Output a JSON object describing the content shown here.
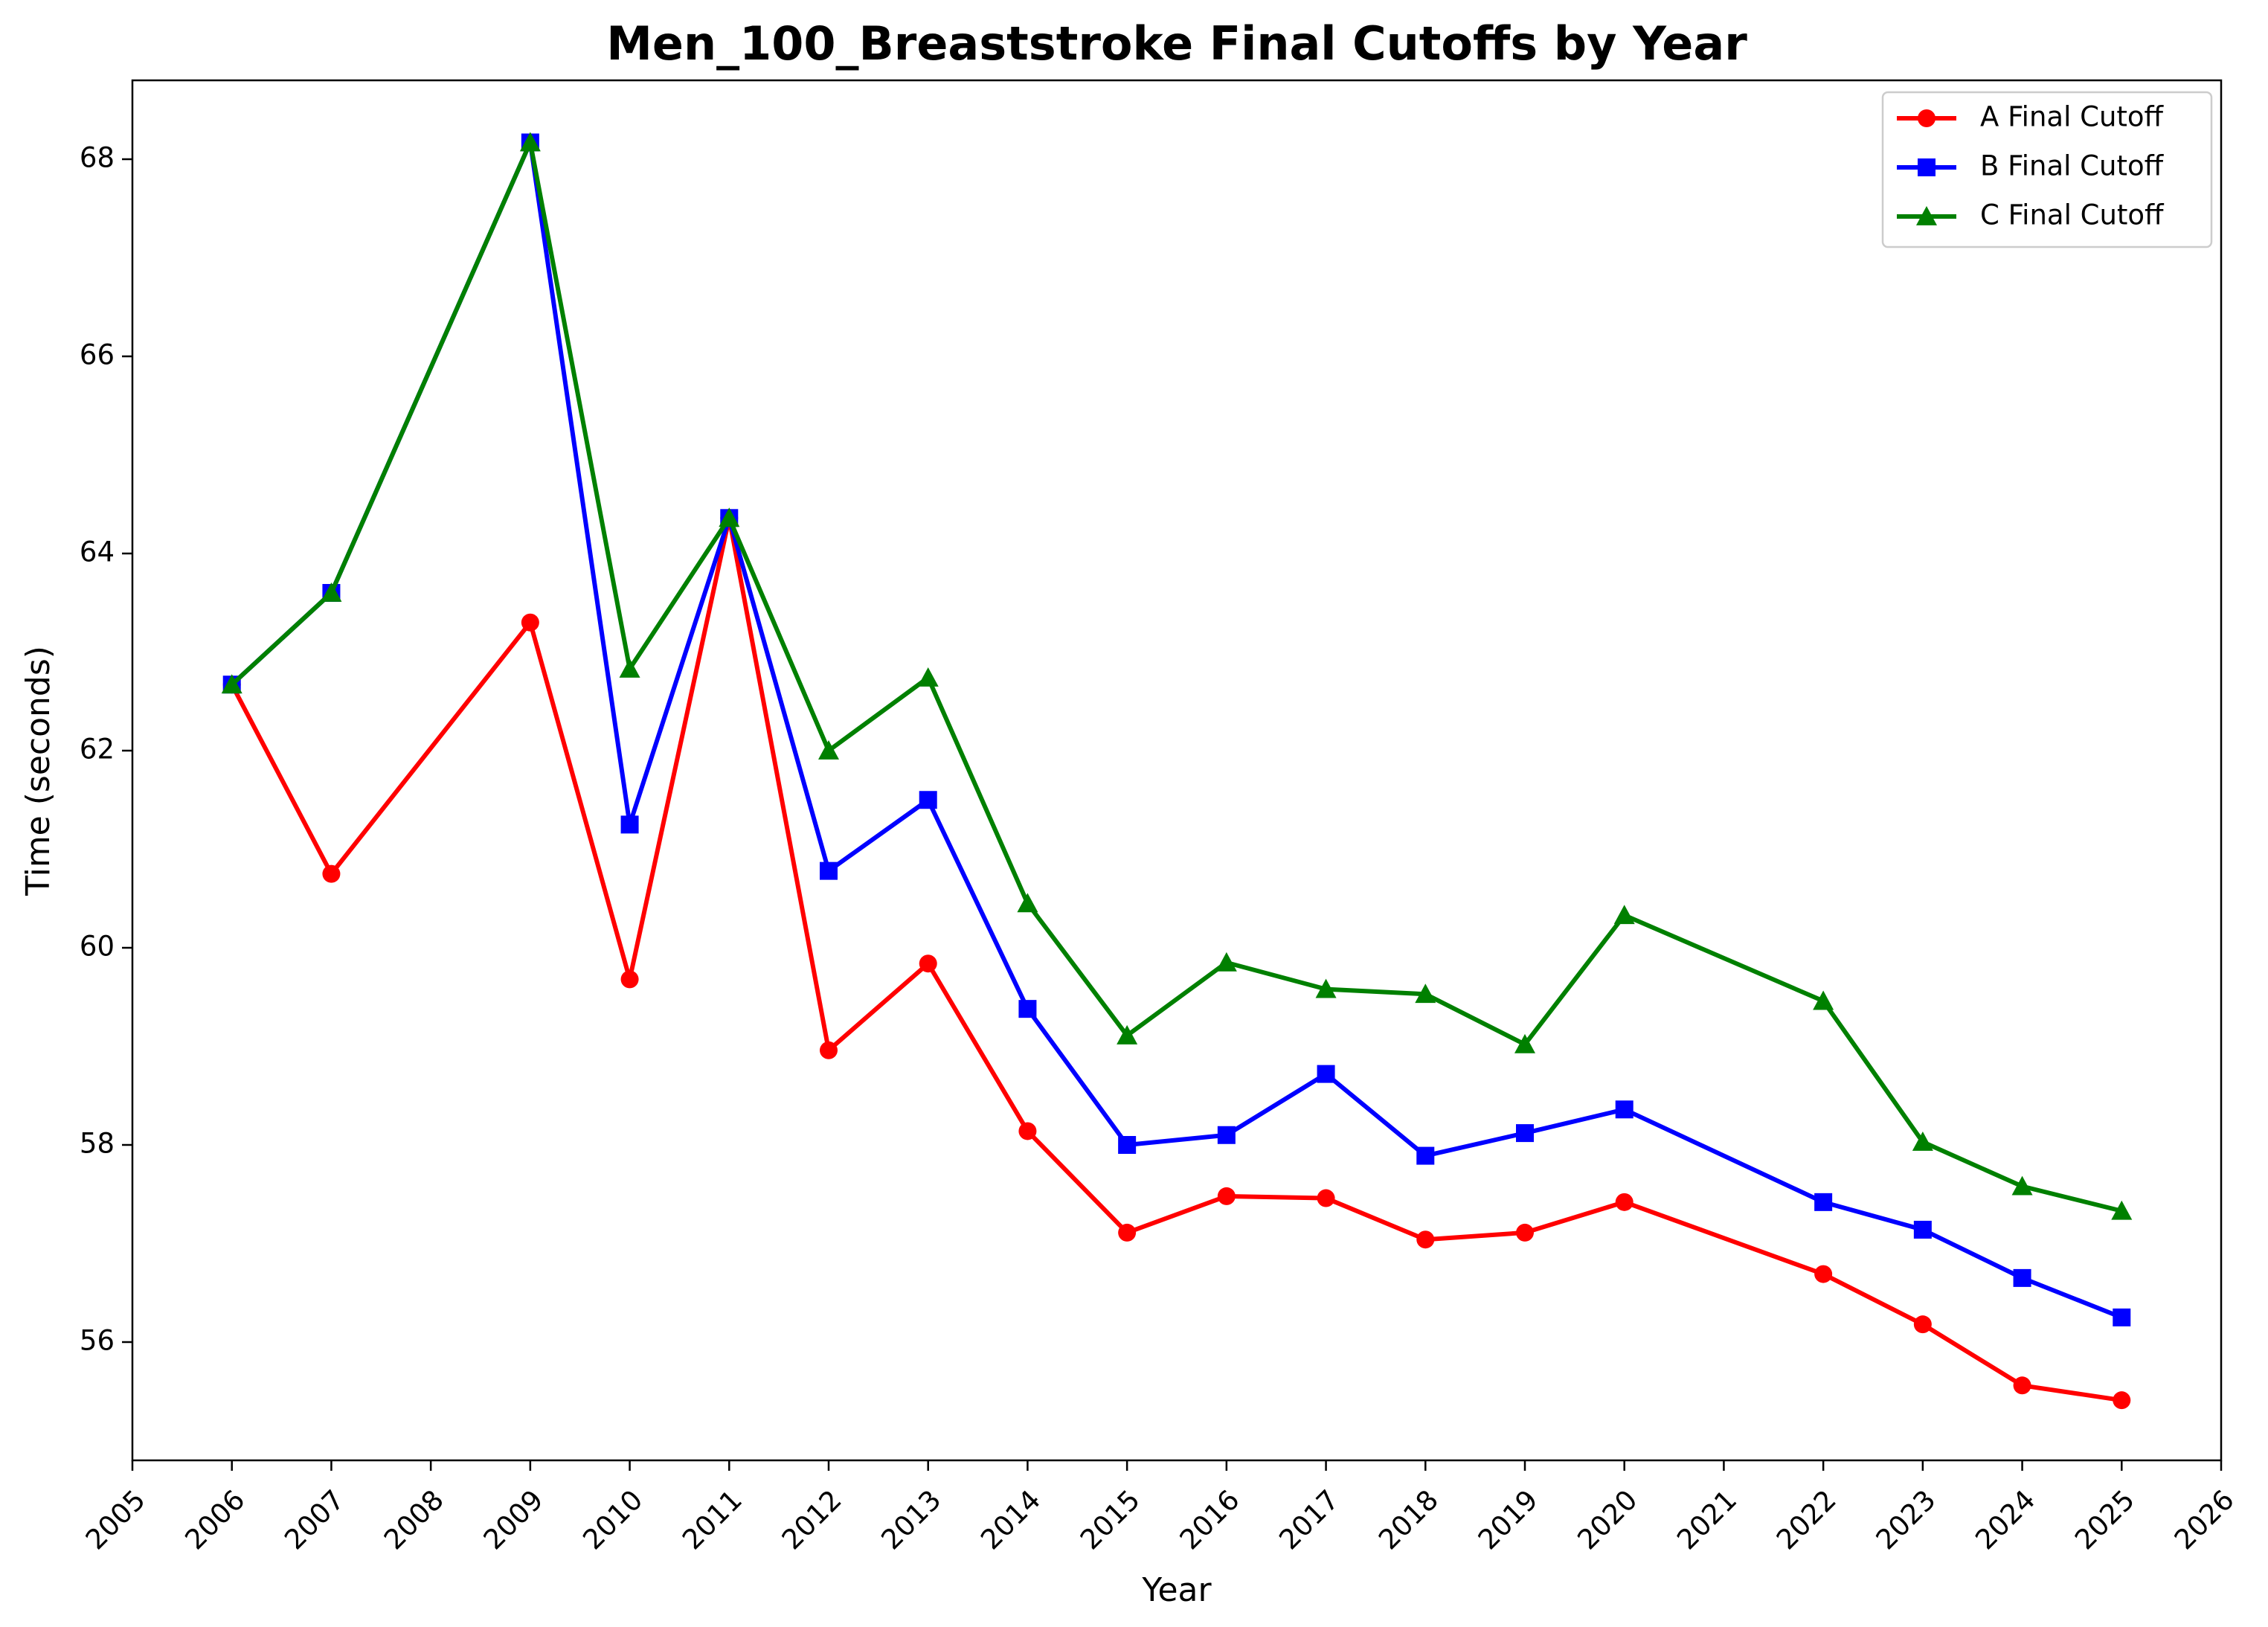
{
  "chart_data": {
    "type": "line",
    "title": "Men_100_Breaststroke Final Cutoffs by Year",
    "xlabel": "Year",
    "ylabel": "Time (seconds)",
    "xlim": [
      2005,
      2026
    ],
    "ylim": [
      54.8,
      68.8
    ],
    "x_ticks": [
      "2005",
      "2006",
      "2007",
      "2008",
      "2009",
      "2010",
      "2011",
      "2012",
      "2013",
      "2014",
      "2015",
      "2016",
      "2017",
      "2018",
      "2019",
      "2020",
      "2021",
      "2022",
      "2023",
      "2024",
      "2025",
      "2026"
    ],
    "y_ticks": [
      "56",
      "58",
      "60",
      "62",
      "64",
      "66",
      "68"
    ],
    "grid": false,
    "legend_position": "top-right",
    "x": [
      2006,
      2007,
      2009,
      2010,
      2011,
      2012,
      2013,
      2014,
      2015,
      2016,
      2017,
      2018,
      2019,
      2020,
      2022,
      2023,
      2024,
      2025
    ],
    "series": [
      {
        "name": "A Final Cutoff",
        "color": "#ff0000",
        "marker": "circle",
        "values": [
          62.67,
          60.75,
          63.3,
          59.68,
          64.36,
          58.96,
          59.84,
          58.14,
          57.11,
          57.48,
          57.46,
          57.04,
          57.11,
          57.42,
          56.69,
          56.18,
          55.56,
          55.41
        ]
      },
      {
        "name": "B Final Cutoff",
        "color": "#0000ff",
        "marker": "square",
        "values": [
          62.67,
          63.6,
          68.17,
          61.25,
          64.36,
          60.78,
          61.5,
          59.38,
          58.0,
          58.1,
          58.72,
          57.89,
          58.12,
          58.36,
          57.42,
          57.14,
          56.65,
          56.25
        ]
      },
      {
        "name": "C Final Cutoff",
        "color": "#008000",
        "marker": "triangle",
        "values": [
          62.67,
          63.6,
          68.17,
          62.83,
          64.36,
          62.0,
          62.74,
          60.45,
          59.11,
          59.85,
          59.58,
          59.53,
          59.02,
          60.33,
          59.46,
          58.03,
          57.58,
          57.33
        ]
      }
    ]
  }
}
